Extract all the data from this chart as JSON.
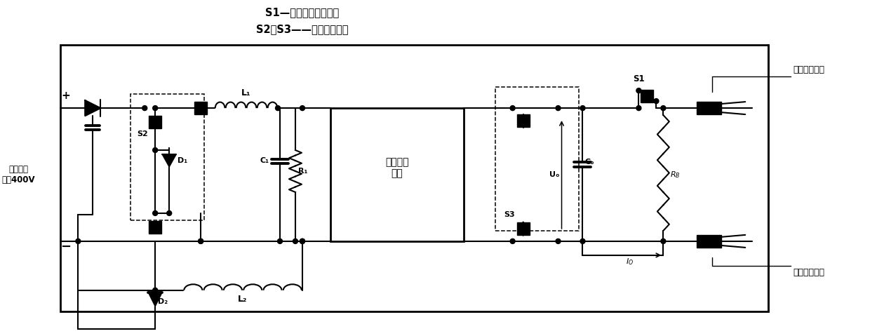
{
  "title_line1": "S1—机械弹簧继电开关",
  "title_line2": "S2，S3——双刀双掚开关",
  "label_source": "家用直流\n电源400V",
  "label_resonant": "谐振变换\n电路",
  "label_neg": "负极电流导体",
  "label_pos": "正极电流导体",
  "label_L1": "L₁",
  "label_L2": "L₂",
  "label_D1": "D₁",
  "label_D2": "D₂",
  "label_C1": "C₁",
  "label_R1": "R₁",
  "label_S2": "S2",
  "label_S1": "S1",
  "label_S3": "S3",
  "label_Uo": "Uₒ",
  "label_Co": "Cₒ",
  "label_RB": "RB",
  "label_Io": "Iₒ",
  "bg_color": "#ffffff",
  "line_color": "#000000"
}
